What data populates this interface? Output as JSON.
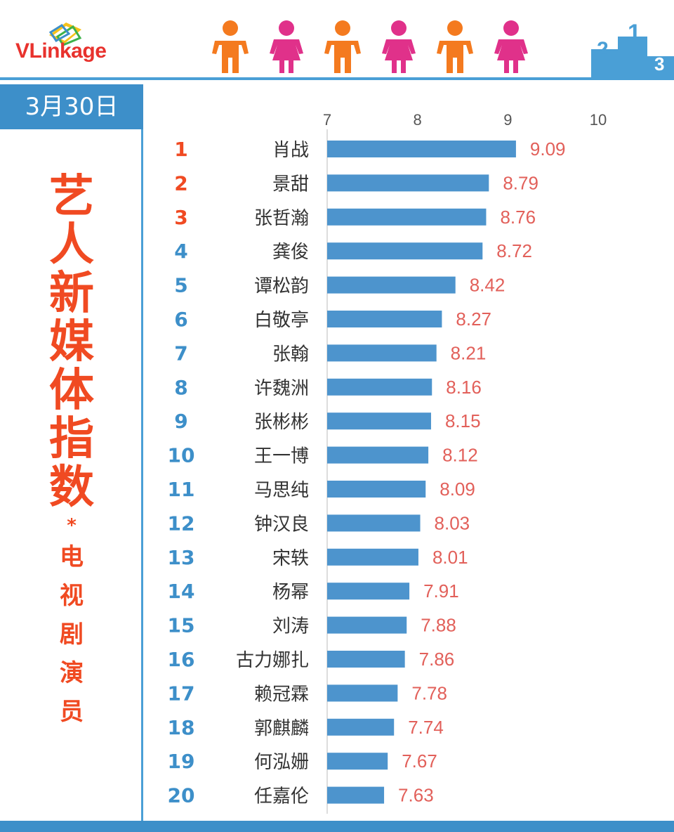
{
  "brand": {
    "logo_text_v": "V",
    "logo_text_rest": "Linkage"
  },
  "header": {
    "date": "3月30日"
  },
  "sidebar": {
    "title_chars": [
      "艺",
      "人",
      "新",
      "媒",
      "体",
      "指",
      "数"
    ],
    "star": "*",
    "subtitle_chars": [
      "电",
      "视",
      "剧",
      "演",
      "员"
    ]
  },
  "icons": {
    "person_male": "person-male-icon",
    "person_female": "person-female-icon",
    "podium": "podium-icon"
  },
  "colors": {
    "accent_blue": "#3d8fc9",
    "bar": "#4d94cd",
    "title": "#f04a22",
    "value": "#e2605a",
    "rank_top": "#f04a22",
    "rank_rest": "#3d8fc9",
    "male": "#f47a1f",
    "female": "#e0318a"
  },
  "chart_data": {
    "type": "bar",
    "orientation": "horizontal",
    "xlim": [
      7,
      10
    ],
    "xticks": [
      "7",
      "8",
      "9",
      "10"
    ],
    "ranks": [
      "1",
      "2",
      "3",
      "4",
      "5",
      "6",
      "7",
      "8",
      "9",
      "10",
      "11",
      "12",
      "13",
      "14",
      "15",
      "16",
      "17",
      "18",
      "19",
      "20"
    ],
    "categories": [
      "肖战",
      "景甜",
      "张哲瀚",
      "龚俊",
      "谭松韵",
      "白敬亭",
      "张翰",
      "许魏洲",
      "张彬彬",
      "王一博",
      "马思纯",
      "钟汉良",
      "宋轶",
      "杨幂",
      "刘涛",
      "古力娜扎",
      "赖冠霖",
      "郭麒麟",
      "何泓姗",
      "任嘉伦"
    ],
    "values": [
      9.09,
      8.79,
      8.76,
      8.72,
      8.42,
      8.27,
      8.21,
      8.16,
      8.15,
      8.12,
      8.09,
      8.03,
      8.01,
      7.91,
      7.88,
      7.86,
      7.78,
      7.74,
      7.67,
      7.63
    ],
    "value_labels": [
      "9.09",
      "8.79",
      "8.76",
      "8.72",
      "8.42",
      "8.27",
      "8.21",
      "8.16",
      "8.15",
      "8.12",
      "8.09",
      "8.03",
      "8.01",
      "7.91",
      "7.88",
      "7.86",
      "7.78",
      "7.74",
      "7.67",
      "7.63"
    ],
    "top_ranks_highlighted": 3
  }
}
